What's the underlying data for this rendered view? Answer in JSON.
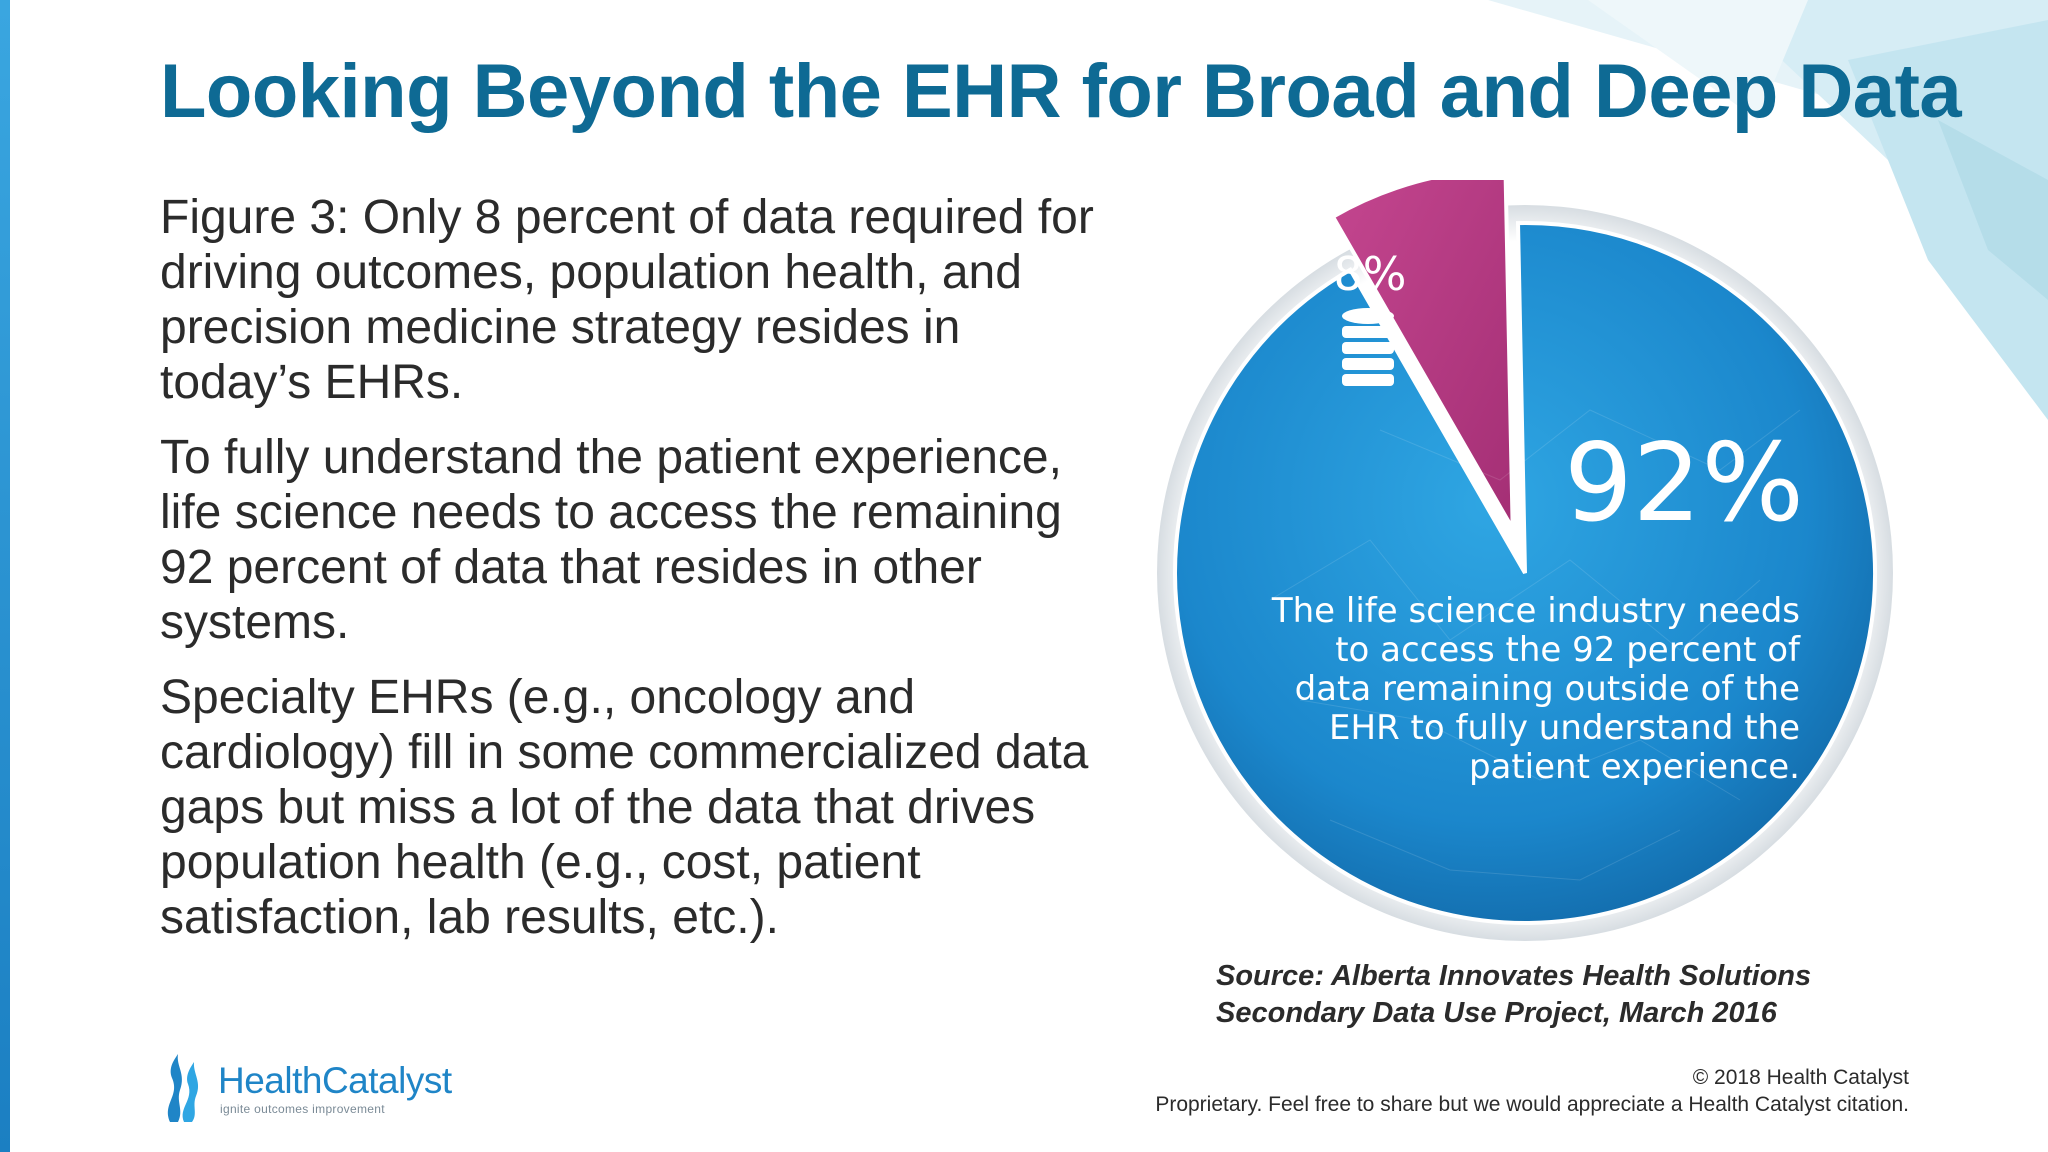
{
  "title": "Looking Beyond the EHR for Broad and Deep Data",
  "paragraphs": [
    "Figure 3: Only 8 percent of data required for driving outcomes, population health, and precision medicine strategy resides in today’s EHRs.",
    "To fully understand the patient experience, life science needs to access the remaining 92 percent of data that resides in other systems.",
    "Specialty EHRs (e.g., oncology and cardiology) fill in some commercialized data gaps but miss a lot of the data that drives population health (e.g., cost, patient satisfaction, lab results, etc.)."
  ],
  "chart_data": {
    "type": "pie",
    "slices": [
      {
        "label": "8%",
        "value": 8,
        "color": "#b83a83",
        "icon": "database-icon"
      },
      {
        "label": "92%",
        "value": 92,
        "color": "#1f8fd2"
      }
    ],
    "description_lines": [
      "The life science industry needs",
      "to access the 92 percent of",
      "data remaining outside of the",
      "EHR to fully understand the",
      "patient experience."
    ]
  },
  "source_lines": [
    "Source: Alberta Innovates Health Solutions",
    "Secondary Data Use Project, March 2016"
  ],
  "copyright_lines": [
    "© 2018 Health Catalyst",
    "Proprietary. Feel free to share but we would appreciate a Health Catalyst citation."
  ],
  "logo": {
    "name_part1": "Health",
    "name_part2": "Catalyst",
    "tagline": "ignite outcomes improvement"
  },
  "colors": {
    "title": "#0e6a94",
    "accent_blue": "#1f8fd2",
    "accent_magenta": "#b83a83",
    "text": "#2b2b2b"
  }
}
